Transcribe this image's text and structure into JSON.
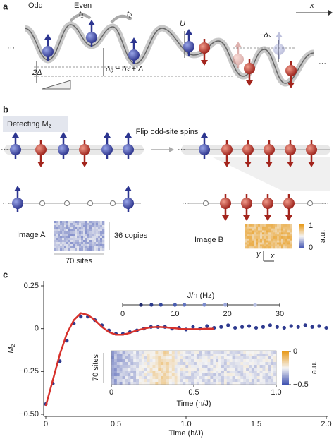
{
  "panel_a": {
    "label": "a",
    "odd": "Odd",
    "even": "Even",
    "t1": "t₁",
    "t2": "t₂",
    "x_axis": "x",
    "U": "U",
    "delta_s": "−δₛ",
    "two_delta": "2Δ",
    "offset": "δ₀ − δₛ + Δ",
    "ellipsis": "···"
  },
  "panel_b": {
    "label": "b",
    "detecting": {
      "text": "Detecting M",
      "sub": "z"
    },
    "flip": "Flip odd-site spins",
    "ellipsis": "···",
    "image_a": "Image A",
    "copies": "36 copies",
    "sites": "70 sites",
    "image_b": "Image B",
    "colorbar": {
      "ticks": [
        1,
        0
      ],
      "label": "a.u."
    },
    "axes": {
      "y": "y",
      "x": "x"
    }
  },
  "chart_data": {
    "type": "scatter",
    "panel_label": "c",
    "ylabel": {
      "main": "M",
      "sub": "z"
    },
    "xlabel": "Time (h/J)",
    "xlim": [
      0,
      2
    ],
    "ylim": [
      -0.5,
      0.25
    ],
    "xticks": [
      0,
      0.5,
      {
        "value": 1,
        "label": "1.0"
      },
      1.5,
      {
        "value": 2,
        "label": "2.0"
      }
    ],
    "yticks": [
      0.25,
      0,
      {
        "value": -0.25,
        "label": "−0.25"
      },
      {
        "value": -0.5,
        "label": "−0.50"
      }
    ],
    "series": [
      {
        "color": "#2e3a8f",
        "x": [
          0,
          0.05,
          0.1,
          0.15,
          0.2,
          0.25,
          0.3,
          0.35,
          0.4,
          0.45,
          0.5,
          0.55,
          0.6,
          0.65,
          0.7,
          0.75,
          0.8,
          0.85,
          0.9,
          0.95,
          1,
          1.05,
          1.1,
          1.15,
          1.2,
          1.25,
          1.3,
          1.35,
          1.4,
          1.45,
          1.5,
          1.55,
          1.6,
          1.65,
          1.7,
          1.75,
          1.8,
          1.85,
          1.9,
          1.95,
          2
        ],
        "values": [
          -0.44,
          -0.32,
          -0.19,
          -0.07,
          0.03,
          0.07,
          0.07,
          0.05,
          0.02,
          -0.01,
          -0.03,
          -0.03,
          -0.02,
          -0.01,
          0,
          0.01,
          0.01,
          0.01,
          0,
          0.005,
          -0.005,
          0.01,
          0,
          0.015,
          0.005,
          0.01,
          0.02,
          0.005,
          0.01,
          0.015,
          0.005,
          0.01,
          0.02,
          0.01,
          0.005,
          0.015,
          0.01,
          0.02,
          0.01,
          0.015,
          0.005
        ]
      },
      {
        "color": "#d7312b",
        "style": "line",
        "x": [
          0,
          0.05,
          0.1,
          0.15,
          0.2,
          0.25,
          0.3,
          0.35,
          0.4,
          0.45,
          0.5,
          0.55,
          0.6,
          0.65,
          0.7,
          0.75,
          0.8,
          0.85,
          0.9,
          0.95,
          1,
          1.05,
          1.1,
          1.15,
          1.2
        ],
        "values": [
          -0.45,
          -0.3,
          -0.15,
          -0.03,
          0.05,
          0.09,
          0.08,
          0.05,
          0.01,
          -0.02,
          -0.035,
          -0.035,
          -0.025,
          -0.01,
          0,
          0.008,
          0.01,
          0.008,
          0.004,
          0,
          -0.002,
          -0.003,
          -0.002,
          0,
          0
        ]
      }
    ],
    "inset_frequency": {
      "label": "J/h (Hz)",
      "xlim": [
        0,
        30
      ],
      "xticks": [
        0,
        10,
        20,
        30
      ],
      "values": [
        3.5,
        5.5,
        7.3,
        10,
        11.8,
        15.6,
        19.6,
        25.3
      ],
      "colors": [
        "#1f2a6e",
        "#2b3a8c",
        "#34479c",
        "#4a5db0",
        "#6274bf",
        "#7c8ccc",
        "#9aa6d8",
        "#b8c1e4"
      ]
    },
    "inset_image": {
      "ylabel": "70 sites",
      "xlabel": "Time (h/J)",
      "xlim": [
        0,
        1
      ],
      "xticks": [
        0,
        0.5,
        {
          "value": 1,
          "label": "1.0"
        }
      ],
      "colorbar": {
        "label": "a.u.",
        "clim": [
          -0.5,
          0
        ],
        "ticks": [
          0,
          {
            "value": -0.5,
            "label": "−0.5"
          }
        ]
      }
    }
  }
}
